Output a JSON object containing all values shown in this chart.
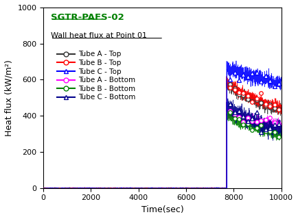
{
  "title": "SGTR-PAFS-02",
  "subtitle": "Wall heat flux at Point 01",
  "xlabel": "Time(sec)",
  "ylabel": "Heat flux (kW/m²)",
  "xlim": [
    0,
    10000
  ],
  "ylim": [
    0,
    1000
  ],
  "xticks": [
    0,
    2000,
    4000,
    6000,
    8000,
    10000
  ],
  "yticks": [
    0,
    200,
    400,
    600,
    800,
    1000
  ],
  "transition_time": 7700,
  "end_time": 10000,
  "series": [
    {
      "label": "Tube A - Top",
      "color": "#333333",
      "marker": "o",
      "peak": 575,
      "end": 370,
      "noise": 15,
      "zorder": 4
    },
    {
      "label": "Tube B - Top",
      "color": "#ff0000",
      "marker": "o",
      "peak": 590,
      "end": 380,
      "noise": 15,
      "zorder": 4
    },
    {
      "label": "Tube C - Top",
      "color": "#0000ff",
      "marker": "^",
      "peak": 670,
      "end": 550,
      "noise": 20,
      "zorder": 5
    },
    {
      "label": "Tube A - Bottom",
      "color": "#ff00ff",
      "marker": "o",
      "peak": 420,
      "end": 310,
      "noise": 15,
      "zorder": 3
    },
    {
      "label": "Tube B - Bottom",
      "color": "#008000",
      "marker": "o",
      "peak": 410,
      "end": 250,
      "noise": 15,
      "zorder": 3
    },
    {
      "label": "Tube C - Bottom",
      "color": "#00008b",
      "marker": "^",
      "peak": 460,
      "end": 265,
      "noise": 20,
      "zorder": 3
    }
  ],
  "title_color": "#008000",
  "background_color": "#ffffff"
}
